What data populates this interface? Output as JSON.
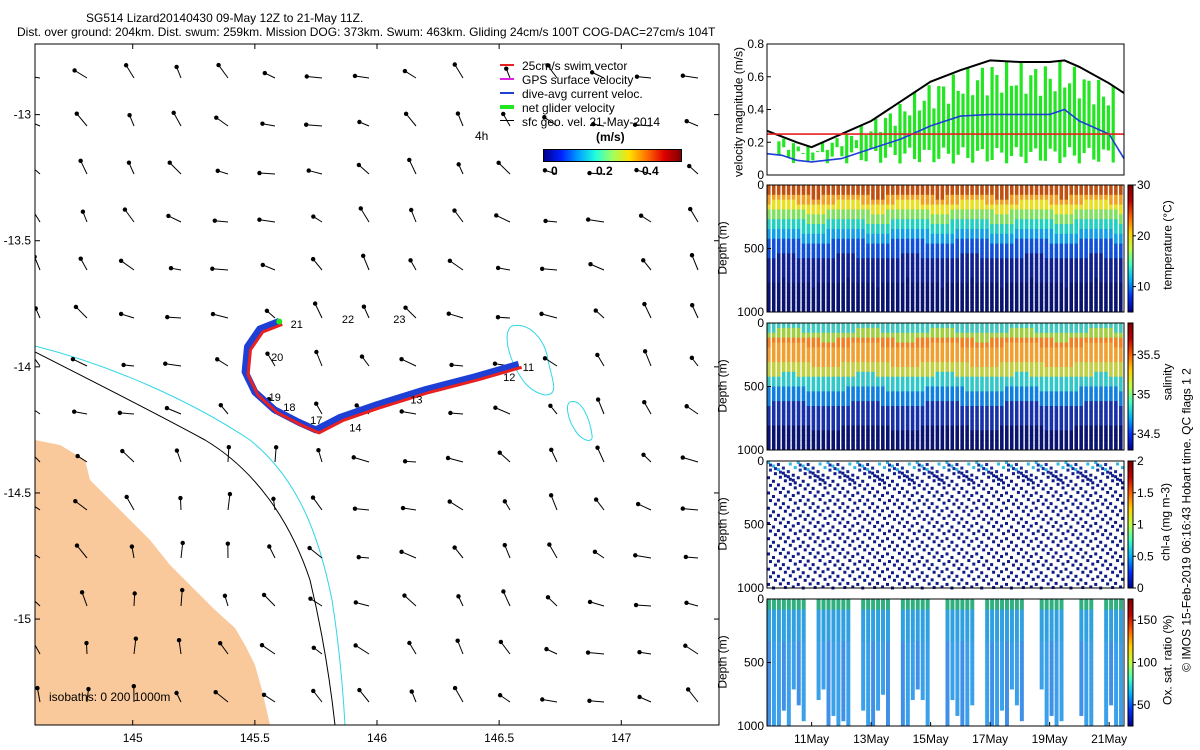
{
  "header": {
    "line1": "SG514 Lizard20140430 09-May 12Z to 21-May 11Z.",
    "line2": "Dist. over ground: 204km. Dist. swum: 259km. Mission DOG: 373km. Swum: 463km. Gliding 24cm/s 100T COG-DAC=27cm/s 104T"
  },
  "footer": "© IMOS 15-Feb-2019 06:16:43 Hobart time. QC flags 1  2",
  "colors": {
    "land": "#f9c89b",
    "isobath_shallow": "#33d6e6",
    "swim": "#e82020",
    "dac": "#1d3fd6",
    "net": "#22e622",
    "gps": "#e020e0"
  },
  "chart_data": [
    {
      "type": "scatter",
      "subtype": "map",
      "xlim": [
        144.6,
        147.4
      ],
      "ylim": [
        -15.42,
        -12.72
      ],
      "xticks": [
        145,
        145.5,
        146,
        146.5,
        147
      ],
      "xtick_labels": [
        "145",
        "145.5",
        "146",
        "146.5",
        "147"
      ],
      "yticks": [
        -13,
        -13.5,
        -14,
        -14.5,
        -15
      ],
      "ytick_labels": [
        "-13",
        "-13.5",
        "-14",
        "-14.5",
        "-15"
      ],
      "legend": [
        {
          "label": "25cm/s swim vector",
          "color": "#e82020"
        },
        {
          "label": "GPS surface velocity",
          "color": "#e020e0"
        },
        {
          "label": "dive-avg current veloc.",
          "color": "#1d3fd6"
        },
        {
          "label": "net glider velocity",
          "color": "#22e622"
        },
        {
          "label": "sfc geo. vel. 21-May-2014",
          "color": "#000000"
        }
      ],
      "annotation_4h": "4h",
      "colorbar": {
        "title": "(m/s)",
        "tick_labels": [
          "0",
          "0.2",
          "0.4"
        ],
        "range": [
          0,
          0.5
        ]
      },
      "isobath_label": "isobaths: 0   200  1000m",
      "track": [
        [
          146.58,
          -13.99
        ],
        [
          146.4,
          -14.04
        ],
        [
          146.2,
          -14.09
        ],
        [
          146,
          -14.15
        ],
        [
          145.85,
          -14.2
        ],
        [
          145.75,
          -14.25
        ],
        [
          145.68,
          -14.22
        ],
        [
          145.58,
          -14.17
        ],
        [
          145.5,
          -14.1
        ],
        [
          145.46,
          -14.02
        ],
        [
          145.47,
          -13.92
        ],
        [
          145.52,
          -13.85
        ],
        [
          145.6,
          -13.82
        ]
      ],
      "day_labels": [
        {
          "text": "11",
          "lon": 146.58,
          "lat": -14.0
        },
        {
          "text": "12",
          "lon": 146.5,
          "lat": -14.04
        },
        {
          "text": "13",
          "lon": 146.12,
          "lat": -14.13
        },
        {
          "text": "14",
          "lon": 145.87,
          "lat": -14.24
        },
        {
          "text": "17",
          "lon": 145.71,
          "lat": -14.21
        },
        {
          "text": "18",
          "lon": 145.6,
          "lat": -14.16
        },
        {
          "text": "19",
          "lon": 145.54,
          "lat": -14.12
        },
        {
          "text": "20",
          "lon": 145.55,
          "lat": -13.96
        },
        {
          "text": "21",
          "lon": 145.63,
          "lat": -13.83
        },
        {
          "text": "22",
          "lon": 145.84,
          "lat": -13.81
        },
        {
          "text": "23",
          "lon": 146.05,
          "lat": -13.81
        }
      ]
    },
    {
      "type": "line",
      "ylabel": "velocity magnitude (m/s)",
      "ylim": [
        0,
        0.8
      ],
      "yticks": [
        0,
        0.2,
        0.4,
        0.6,
        0.8
      ],
      "ytick_labels": [
        "0",
        "0.2",
        "0.4",
        "0.6",
        "0.8"
      ],
      "xlim": [
        9.5,
        21.5
      ],
      "series": [
        {
          "color": "#000000",
          "x": [
            9.5,
            10.5,
            11,
            12,
            13,
            14,
            15,
            16,
            17,
            18,
            19,
            19.5,
            20,
            21,
            21.5
          ],
          "y": [
            0.27,
            0.2,
            0.17,
            0.25,
            0.33,
            0.45,
            0.57,
            0.64,
            0.7,
            0.69,
            0.69,
            0.7,
            0.66,
            0.56,
            0.5
          ]
        },
        {
          "color": "#1d3fd6",
          "x": [
            9.5,
            10,
            10.5,
            11,
            12,
            13,
            14,
            15,
            16,
            17,
            18,
            19,
            19.5,
            20,
            21,
            21.5
          ],
          "y": [
            0.13,
            0.12,
            0.09,
            0.08,
            0.1,
            0.16,
            0.22,
            0.3,
            0.36,
            0.37,
            0.37,
            0.37,
            0.4,
            0.33,
            0.25,
            0.1
          ]
        },
        {
          "color": "#e82020",
          "x": [
            9.5,
            21.5
          ],
          "y": [
            0.25,
            0.25
          ]
        }
      ]
    },
    {
      "type": "heatmap",
      "ylabel": "Depth (m)",
      "yticks": [
        0,
        500,
        1000
      ],
      "ytick_labels": [
        "0",
        "500",
        "1000"
      ],
      "colorbar_label": "temperature (°C)",
      "colorbar_ticks": [
        10,
        20,
        30
      ],
      "colorbar_tick_labels": [
        "10",
        "20",
        "30"
      ],
      "crange": [
        5,
        30
      ]
    },
    {
      "type": "heatmap",
      "ylabel": "Depth (m)",
      "yticks": [
        0,
        500,
        1000
      ],
      "ytick_labels": [
        "0",
        "500",
        "1000"
      ],
      "colorbar_label": "salinity",
      "colorbar_ticks": [
        34.5,
        35,
        35.5
      ],
      "colorbar_tick_labels": [
        "34.5",
        "35",
        "35.5"
      ],
      "crange": [
        34.3,
        35.9
      ]
    },
    {
      "type": "scatter",
      "ylabel": "Depth (m)",
      "yticks": [
        0,
        500,
        1000
      ],
      "ytick_labels": [
        "0",
        "500",
        "1000"
      ],
      "colorbar_label": "chl-a (mg m-3)",
      "colorbar_ticks": [
        0,
        0.5,
        1,
        1.5,
        2
      ],
      "colorbar_tick_labels": [
        "0",
        "0.5",
        "1",
        "1.5",
        "2"
      ],
      "crange": [
        0,
        2
      ]
    },
    {
      "type": "heatmap",
      "ylabel": "Depth (m)",
      "yticks": [
        0,
        500,
        1000
      ],
      "ytick_labels": [
        "0",
        "500",
        "1000"
      ],
      "colorbar_label": "Ox. sat. ratio (%)",
      "colorbar_ticks": [
        50,
        100,
        150
      ],
      "colorbar_tick_labels": [
        "50",
        "100",
        "150"
      ],
      "crange": [
        25,
        175
      ],
      "xticks": [
        11,
        13,
        15,
        17,
        19,
        21
      ],
      "xtick_labels": [
        "11May",
        "13May",
        "15May",
        "17May",
        "19May",
        "21May"
      ]
    }
  ]
}
